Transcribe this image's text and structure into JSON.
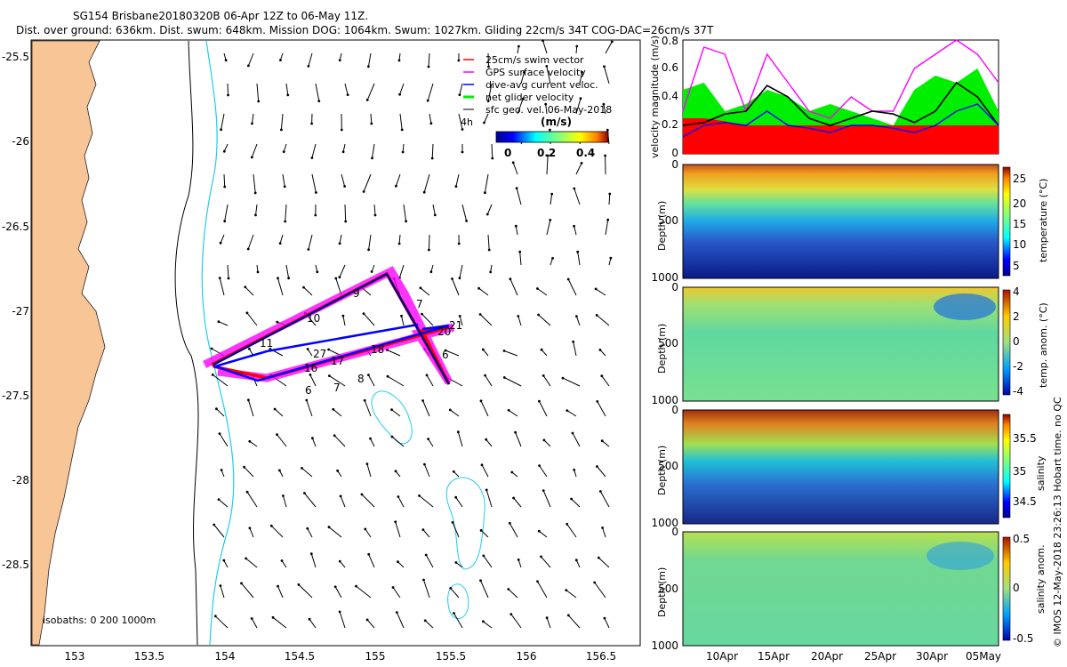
{
  "header": {
    "line1": "SG154 Brisbane20180320B 06-Apr 12Z to 06-May 11Z.",
    "line2": "Dist. over ground: 636km. Dist. swum: 648km. Mission DOG: 1064km. Swum: 1027km. Gliding 22cm/s 34T COG-DAC=26cm/s 37T"
  },
  "colors": {
    "land": "#f8c696",
    "isobath_200": "#000000",
    "isobath_1000": "#22ccee",
    "swim_vector": "#ff0000",
    "gps_velocity": "#ff00ff",
    "dive_avg": "#0000ff",
    "net_glider": "#00ee00",
    "geostrophic": "#000000"
  },
  "map": {
    "legend": [
      {
        "label": "25cm/s swim vector",
        "color_key": "swim_vector"
      },
      {
        "label": "GPS surface velocity",
        "color_key": "gps_velocity"
      },
      {
        "label": "dive-avg current veloc.",
        "color_key": "dive_avg"
      },
      {
        "label": "net glider velocity",
        "color_key": "net_glider"
      },
      {
        "label": "sfc geo. vel. 06-May-2018",
        "color_key": "geostrophic"
      }
    ],
    "timestep_label": "4h",
    "colorbar": {
      "unit": "(m/s)",
      "ticks": [
        "0",
        "0.2",
        "0.4"
      ],
      "range": [
        0,
        0.5
      ]
    },
    "isobath_note": "isobaths: 0   200  1000m",
    "lon_ticks": [
      "153",
      "153.5",
      "154",
      "154.5",
      "155",
      "155.5",
      "156",
      "156.5"
    ],
    "lat_ticks": [
      "-25.5",
      "-26",
      "-26.5",
      "-27",
      "-27.5",
      "-28",
      "-28.5"
    ],
    "track_labels": [
      "9",
      "7",
      "10",
      "21",
      "20",
      "11",
      "18",
      "27",
      "17",
      "16",
      "6",
      "8",
      "7",
      "6"
    ]
  },
  "side_note": "© IMOS 12-May-2018 23:26:13 Hobart time. no QC",
  "chart_data": [
    {
      "type": "line",
      "title": "",
      "ylabel": "velocity magnitude (m/s)",
      "ylim": [
        0,
        0.8
      ],
      "yticks": [
        "0",
        "0.2",
        "0.4",
        "0.6",
        "0.8"
      ],
      "x": [
        0,
        2,
        4,
        6,
        8,
        10,
        12,
        14,
        16,
        18,
        20,
        22,
        24,
        26,
        28,
        30
      ],
      "series": [
        {
          "name": "25cm/s swim vector",
          "color_key": "swim_vector",
          "values": [
            0.25,
            0.25,
            0.23,
            0.2,
            0.2,
            0.2,
            0.2,
            0.2,
            0.2,
            0.2,
            0.2,
            0.2,
            0.2,
            0.2,
            0.2,
            0.2
          ]
        },
        {
          "name": "GPS surface velocity",
          "color_key": "gps_velocity",
          "values": [
            0.3,
            0.75,
            0.7,
            0.3,
            0.7,
            0.5,
            0.3,
            0.25,
            0.4,
            0.3,
            0.3,
            0.6,
            0.7,
            0.8,
            0.7,
            0.5
          ]
        },
        {
          "name": "dive-avg current veloc.",
          "color_key": "dive_avg",
          "values": [
            0.12,
            0.2,
            0.22,
            0.2,
            0.3,
            0.2,
            0.18,
            0.15,
            0.2,
            0.2,
            0.18,
            0.15,
            0.2,
            0.3,
            0.35,
            0.2
          ]
        },
        {
          "name": "net glider velocity",
          "color_key": "net_glider",
          "values": [
            0.45,
            0.5,
            0.3,
            0.35,
            0.45,
            0.4,
            0.3,
            0.35,
            0.3,
            0.25,
            0.2,
            0.45,
            0.55,
            0.5,
            0.6,
            0.3
          ]
        },
        {
          "name": "sfc geo. vel.",
          "color_key": "geostrophic",
          "values": [
            0.2,
            0.22,
            0.28,
            0.3,
            0.48,
            0.4,
            0.25,
            0.2,
            0.25,
            0.3,
            0.28,
            0.22,
            0.3,
            0.5,
            0.4,
            0.2
          ]
        }
      ]
    },
    {
      "type": "heatmap",
      "ylabel": "Depth (m)",
      "yticks": [
        "0",
        "500",
        "1000"
      ],
      "colorbar_label": "temperature (°C)",
      "colorbar_ticks": [
        "25",
        "20",
        "15",
        "10",
        "5"
      ],
      "clim": [
        4,
        28
      ]
    },
    {
      "type": "heatmap",
      "ylabel": "Depth (m)",
      "yticks": [
        "0",
        "500",
        "1000"
      ],
      "colorbar_label": "temp. anom. (°C)",
      "colorbar_ticks": [
        "4",
        "2",
        "0",
        "-2",
        "-4"
      ],
      "clim": [
        -4,
        4
      ]
    },
    {
      "type": "heatmap",
      "ylabel": "Depth (m)",
      "yticks": [
        "0",
        "500",
        "1000"
      ],
      "colorbar_label": "salinity",
      "colorbar_ticks": [
        "35.5",
        "35",
        "34.5"
      ],
      "clim": [
        34.3,
        35.8
      ]
    },
    {
      "type": "heatmap",
      "ylabel": "Depth (m)",
      "yticks": [
        "0",
        "500",
        "1000"
      ],
      "colorbar_label": "salinity anom.",
      "colorbar_ticks": [
        "0.5",
        "0",
        "-0.5"
      ],
      "clim": [
        -0.5,
        0.5
      ],
      "xticks": [
        "10Apr",
        "15Apr",
        "20Apr",
        "25Apr",
        "30Apr",
        "05May"
      ]
    }
  ]
}
